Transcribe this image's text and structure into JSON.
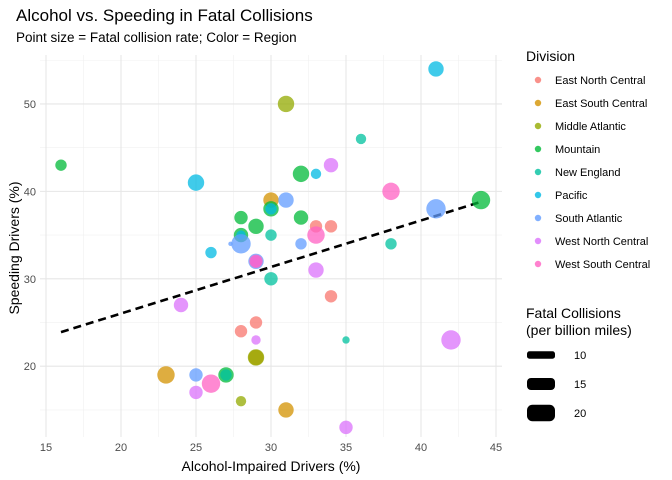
{
  "chart_data": {
    "type": "scatter",
    "title": "Alcohol vs. Speeding in Fatal Collisions",
    "subtitle": "Point size = Fatal collision rate; Color = Region",
    "xlabel": "Alcohol-Impaired Drivers (%)",
    "ylabel": "Speeding Drivers (%)",
    "xlim": [
      14.6,
      45.4
    ],
    "ylim": [
      11.9,
      55.6
    ],
    "x_ticks": [
      "15",
      "20",
      "25",
      "30",
      "35",
      "40",
      "45"
    ],
    "y_ticks": [
      "20",
      "30",
      "40",
      "50"
    ],
    "grid": true,
    "trend_line": {
      "style": "dashed",
      "color": "#000000",
      "from": [
        16,
        23.9
      ],
      "to": [
        44,
        38.8
      ]
    },
    "color_legend": {
      "title": "Division",
      "position": "right",
      "entries": [
        {
          "label": "East North Central",
          "color": "#F8766D"
        },
        {
          "label": "East South Central",
          "color": "#D39200"
        },
        {
          "label": "Middle Atlantic",
          "color": "#93AA00"
        },
        {
          "label": "Mountain",
          "color": "#00BA38"
        },
        {
          "label": "New England",
          "color": "#00C19F"
        },
        {
          "label": "Pacific",
          "color": "#00B9E3"
        },
        {
          "label": "South Atlantic",
          "color": "#619CFF"
        },
        {
          "label": "West North Central",
          "color": "#DB72FB"
        },
        {
          "label": "West South Central",
          "color": "#FF61C3"
        }
      ]
    },
    "size_legend": {
      "title_line1": "Fatal Collisions",
      "title_line2": "(per billion miles)",
      "position": "right",
      "entries": [
        {
          "label": "10",
          "value": 10
        },
        {
          "label": "15",
          "value": 15
        },
        {
          "label": "20",
          "value": 20
        }
      ]
    },
    "series": [
      {
        "name": "East North Central",
        "points": [
          [
            33,
            36,
            14
          ],
          [
            34,
            36,
            14
          ],
          [
            29,
            25,
            14
          ],
          [
            28,
            24,
            14
          ],
          [
            34,
            28,
            14
          ]
        ]
      },
      {
        "name": "East South Central",
        "points": [
          [
            30,
            39,
            17
          ],
          [
            23,
            19,
            19
          ],
          [
            31,
            15,
            17
          ],
          [
            29,
            21,
            17
          ]
        ]
      },
      {
        "name": "Middle Atlantic",
        "points": [
          [
            31,
            50,
            18
          ],
          [
            29,
            21,
            18
          ],
          [
            28,
            16,
            12
          ]
        ]
      },
      {
        "name": "Mountain",
        "points": [
          [
            16,
            43,
            13
          ],
          [
            44,
            39,
            20
          ],
          [
            32,
            42,
            18
          ],
          [
            28,
            37,
            15
          ],
          [
            29,
            36,
            17
          ],
          [
            32,
            37,
            16
          ],
          [
            28,
            35,
            16
          ],
          [
            30,
            38,
            17
          ],
          [
            27,
            19,
            17
          ]
        ]
      },
      {
        "name": "New England",
        "points": [
          [
            36,
            46,
            12
          ],
          [
            30,
            35,
            13
          ],
          [
            30,
            30,
            15
          ],
          [
            38,
            34,
            13
          ],
          [
            35,
            23,
            9
          ],
          [
            27,
            19,
            13
          ]
        ]
      },
      {
        "name": "Pacific",
        "points": [
          [
            41,
            54,
            17
          ],
          [
            25,
            41,
            18
          ],
          [
            33,
            42,
            12
          ],
          [
            30,
            38,
            13
          ],
          [
            26,
            33,
            13
          ],
          [
            28,
            35,
            11
          ]
        ]
      },
      {
        "name": "South Atlantic",
        "points": [
          [
            31,
            39,
            17
          ],
          [
            41,
            38,
            21
          ],
          [
            28,
            34,
            21
          ],
          [
            32,
            34,
            13
          ],
          [
            29,
            32,
            17
          ],
          [
            25,
            19,
            15
          ],
          [
            27.3,
            34,
            6
          ]
        ]
      },
      {
        "name": "West North Central",
        "points": [
          [
            34,
            43,
            16
          ],
          [
            33,
            31,
            17
          ],
          [
            24,
            27,
            16
          ],
          [
            29,
            23,
            11
          ],
          [
            25,
            17,
            15
          ],
          [
            35,
            13,
            15
          ],
          [
            42,
            23,
            21
          ],
          [
            29,
            32,
            13
          ]
        ]
      },
      {
        "name": "West South Central",
        "points": [
          [
            38,
            40,
            19
          ],
          [
            33,
            35,
            19
          ],
          [
            29,
            32,
            15
          ],
          [
            26,
            18,
            20
          ]
        ]
      }
    ]
  }
}
